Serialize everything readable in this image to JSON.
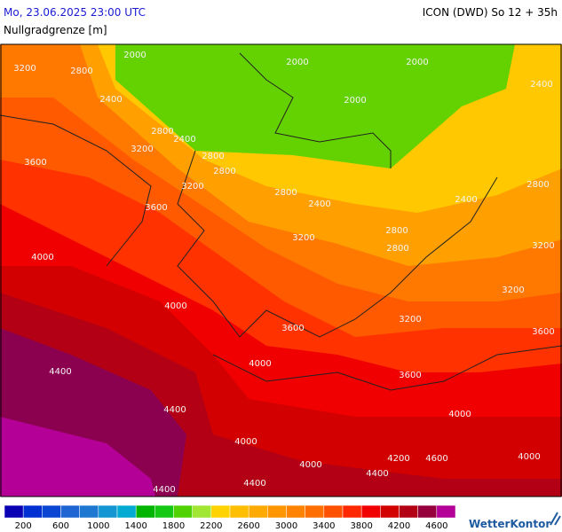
{
  "header": {
    "datetime": "Mo, 23.06.2025 23:00 UTC",
    "model": "ICON (DWD) So 12 + 35h",
    "parameter": "Nullgradgrenze [m]"
  },
  "contour_labels": [
    "3200",
    "2800",
    "2000",
    "2400",
    "2800",
    "2400",
    "3200",
    "2800",
    "2800",
    "3600",
    "3200",
    "2800",
    "3600",
    "2400",
    "3200",
    "2800",
    "2800",
    "4000",
    "4000",
    "3600",
    "3200",
    "3200",
    "3200",
    "2800",
    "2400",
    "2000",
    "2000",
    "2400",
    "2000",
    "3600",
    "4400",
    "4000",
    "3600",
    "4400",
    "4000",
    "4000",
    "4000",
    "4400",
    "4400",
    "4400",
    "4200",
    "4600",
    "4000"
  ],
  "legend": {
    "colors": [
      "#0a00b4",
      "#0030d2",
      "#0a46d2",
      "#1e64d2",
      "#1e78d2",
      "#1496d2",
      "#00aad2",
      "#00b400",
      "#14c814",
      "#50d200",
      "#a0e632",
      "#ffd200",
      "#ffbe00",
      "#ffaa00",
      "#ff9600",
      "#ff8200",
      "#ff6e00",
      "#ff5000",
      "#ff2800",
      "#f00000",
      "#d20000",
      "#b40014",
      "#96003c",
      "#b40096"
    ],
    "ticks": [
      200,
      600,
      1000,
      1400,
      1800,
      2200,
      2600,
      3000,
      3400,
      3800,
      4200,
      4600
    ]
  },
  "logo": "WetterKontor"
}
